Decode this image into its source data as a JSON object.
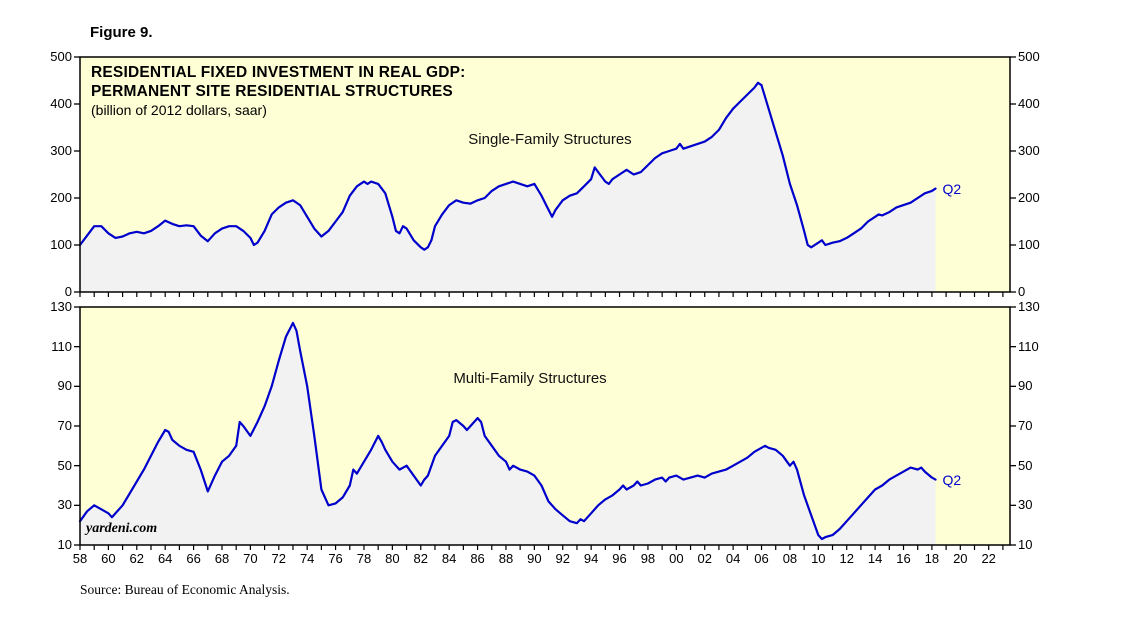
{
  "figure_label": "Figure 9.",
  "title_line1": "RESIDENTIAL FIXED INVESTMENT IN REAL GDP:",
  "title_line2": "PERMANENT SITE RESIDENTIAL STRUCTURES",
  "subtitle": "(billion of 2012 dollars, saar)",
  "watermark": "yardeni.com",
  "source": "Source: Bureau of Economic Analysis.",
  "colors": {
    "line": "#0000CC",
    "panel_bg": "#FFFFD6",
    "fill": "#F2F2F2",
    "axis": "#000000"
  },
  "x_axis": {
    "range": [
      1958,
      2023.5
    ],
    "tick_labels": [
      "58",
      "60",
      "62",
      "64",
      "66",
      "68",
      "70",
      "72",
      "74",
      "76",
      "78",
      "80",
      "82",
      "84",
      "86",
      "88",
      "90",
      "92",
      "94",
      "96",
      "98",
      "00",
      "02",
      "04",
      "06",
      "08",
      "10",
      "12",
      "14",
      "16",
      "18",
      "20",
      "22"
    ],
    "minor_tick_every_years": 1
  },
  "chart_data": [
    {
      "type": "line",
      "name": "Single-Family Structures",
      "end_label": "Q2",
      "ylim": [
        0,
        500
      ],
      "yticks": [
        0,
        100,
        200,
        300,
        400,
        500
      ],
      "x": [
        1958,
        1958.5,
        1959,
        1959.5,
        1960,
        1960.5,
        1961,
        1961.5,
        1962,
        1962.5,
        1963,
        1963.5,
        1964,
        1964.5,
        1965,
        1965.5,
        1966,
        1966.5,
        1967,
        1967.5,
        1968,
        1968.5,
        1969,
        1969.5,
        1970,
        1970.25,
        1970.5,
        1971,
        1971.5,
        1972,
        1972.5,
        1973,
        1973.5,
        1974,
        1974.5,
        1975,
        1975.5,
        1976,
        1976.5,
        1977,
        1977.5,
        1978,
        1978.25,
        1978.5,
        1979,
        1979.5,
        1980,
        1980.25,
        1980.5,
        1980.75,
        1981,
        1981.5,
        1982,
        1982.25,
        1982.5,
        1982.75,
        1983,
        1983.5,
        1984,
        1984.5,
        1985,
        1985.5,
        1986,
        1986.5,
        1987,
        1987.5,
        1988,
        1988.5,
        1989,
        1989.5,
        1990,
        1990.5,
        1991,
        1991.25,
        1991.5,
        1992,
        1992.5,
        1993,
        1993.5,
        1994,
        1994.25,
        1994.5,
        1995,
        1995.25,
        1995.5,
        1996,
        1996.5,
        1997,
        1997.5,
        1998,
        1998.5,
        1999,
        1999.5,
        2000,
        2000.25,
        2000.5,
        2001,
        2001.5,
        2002,
        2002.5,
        2003,
        2003.5,
        2004,
        2004.5,
        2005,
        2005.5,
        2005.75,
        2006,
        2006.5,
        2007,
        2007.5,
        2008,
        2008.5,
        2009,
        2009.25,
        2009.5,
        2010,
        2010.25,
        2010.5,
        2011,
        2011.5,
        2012,
        2012.5,
        2013,
        2013.5,
        2014,
        2014.25,
        2014.5,
        2015,
        2015.5,
        2016,
        2016.5,
        2017,
        2017.5,
        2018,
        2018.25
      ],
      "values": [
        100,
        120,
        140,
        140,
        125,
        115,
        118,
        125,
        128,
        125,
        130,
        140,
        152,
        145,
        140,
        142,
        140,
        120,
        108,
        125,
        135,
        140,
        140,
        130,
        115,
        100,
        105,
        130,
        165,
        180,
        190,
        195,
        185,
        160,
        135,
        118,
        130,
        150,
        170,
        205,
        225,
        235,
        230,
        235,
        230,
        210,
        160,
        130,
        125,
        140,
        135,
        110,
        95,
        90,
        95,
        110,
        140,
        165,
        185,
        195,
        190,
        188,
        195,
        200,
        215,
        225,
        230,
        235,
        230,
        225,
        230,
        205,
        175,
        160,
        175,
        195,
        205,
        210,
        225,
        240,
        265,
        255,
        235,
        230,
        240,
        250,
        260,
        250,
        255,
        270,
        285,
        295,
        300,
        305,
        315,
        305,
        310,
        315,
        320,
        330,
        345,
        370,
        390,
        405,
        420,
        435,
        445,
        440,
        390,
        340,
        290,
        230,
        185,
        130,
        100,
        95,
        105,
        110,
        100,
        105,
        108,
        115,
        125,
        135,
        150,
        160,
        165,
        163,
        170,
        180,
        185,
        190,
        200,
        210,
        215,
        220
      ]
    },
    {
      "type": "line",
      "name": "Multi-Family Structures",
      "end_label": "Q2",
      "ylim": [
        10,
        130
      ],
      "yticks": [
        10,
        30,
        50,
        70,
        90,
        110,
        130
      ],
      "x": [
        1958,
        1958.5,
        1959,
        1959.5,
        1960,
        1960.25,
        1960.5,
        1961,
        1961.5,
        1962,
        1962.5,
        1963,
        1963.5,
        1964,
        1964.25,
        1964.5,
        1965,
        1965.5,
        1966,
        1966.5,
        1967,
        1967.5,
        1968,
        1968.5,
        1969,
        1969.25,
        1969.5,
        1970,
        1970.5,
        1971,
        1971.5,
        1972,
        1972.5,
        1973,
        1973.25,
        1973.5,
        1974,
        1974.5,
        1975,
        1975.5,
        1976,
        1976.5,
        1977,
        1977.25,
        1977.5,
        1978,
        1978.5,
        1979,
        1979.25,
        1979.5,
        1980,
        1980.5,
        1981,
        1981.5,
        1982,
        1982.25,
        1982.5,
        1983,
        1983.5,
        1984,
        1984.25,
        1984.5,
        1985,
        1985.25,
        1985.5,
        1986,
        1986.25,
        1986.5,
        1987,
        1987.5,
        1988,
        1988.25,
        1988.5,
        1989,
        1989.5,
        1990,
        1990.5,
        1991,
        1991.5,
        1992,
        1992.5,
        1993,
        1993.25,
        1993.5,
        1994,
        1994.5,
        1995,
        1995.5,
        1996,
        1996.25,
        1996.5,
        1997,
        1997.25,
        1997.5,
        1998,
        1998.5,
        1999,
        1999.25,
        1999.5,
        2000,
        2000.5,
        2001,
        2001.5,
        2002,
        2002.5,
        2003,
        2003.5,
        2004,
        2004.5,
        2005,
        2005.5,
        2006,
        2006.25,
        2006.5,
        2007,
        2007.5,
        2008,
        2008.25,
        2008.5,
        2009,
        2009.5,
        2010,
        2010.25,
        2010.5,
        2011,
        2011.5,
        2012,
        2012.5,
        2013,
        2013.5,
        2014,
        2014.5,
        2015,
        2015.5,
        2016,
        2016.5,
        2017,
        2017.25,
        2017.5,
        2018,
        2018.25
      ],
      "values": [
        22,
        27,
        30,
        28,
        26,
        24,
        26,
        30,
        36,
        42,
        48,
        55,
        62,
        68,
        67,
        63,
        60,
        58,
        57,
        48,
        37,
        45,
        52,
        55,
        60,
        72,
        70,
        65,
        72,
        80,
        90,
        103,
        115,
        122,
        118,
        108,
        90,
        65,
        38,
        30,
        31,
        34,
        40,
        48,
        46,
        52,
        58,
        65,
        62,
        58,
        52,
        48,
        50,
        45,
        40,
        43,
        45,
        55,
        60,
        65,
        72,
        73,
        70,
        68,
        70,
        74,
        72,
        65,
        60,
        55,
        52,
        48,
        50,
        48,
        47,
        45,
        40,
        32,
        28,
        25,
        22,
        21,
        23,
        22,
        26,
        30,
        33,
        35,
        38,
        40,
        38,
        40,
        42,
        40,
        41,
        43,
        44,
        42,
        44,
        45,
        43,
        44,
        45,
        44,
        46,
        47,
        48,
        50,
        52,
        54,
        57,
        59,
        60,
        59,
        58,
        55,
        50,
        52,
        48,
        35,
        25,
        15,
        13,
        14,
        15,
        18,
        22,
        26,
        30,
        34,
        38,
        40,
        43,
        45,
        47,
        49,
        48,
        49,
        47,
        44,
        43
      ]
    }
  ]
}
